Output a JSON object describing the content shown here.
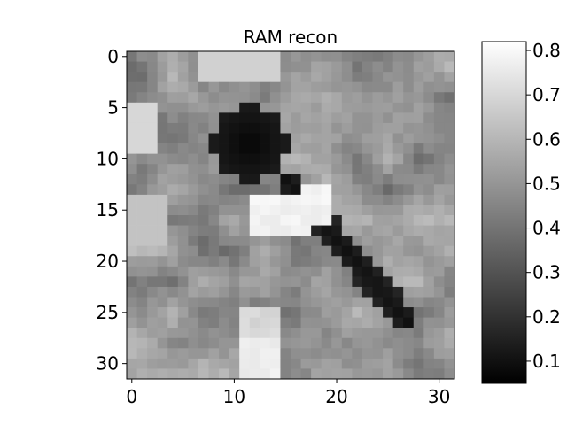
{
  "chart_data": {
    "type": "heatmap",
    "title": "RAM recon",
    "xlabel": "",
    "ylabel": "",
    "colormap": "gray",
    "grid": false,
    "x_ticks": [
      0,
      10,
      20,
      30
    ],
    "y_ticks": [
      0,
      5,
      10,
      15,
      20,
      25,
      30
    ],
    "xlim": [
      -0.5,
      31.5
    ],
    "ylim": [
      31.5,
      -0.5
    ],
    "colorbar": {
      "placement": "right",
      "vmin": 0.05,
      "vmax": 0.82,
      "ticks": [
        0.1,
        0.2,
        0.3,
        0.4,
        0.5,
        0.6,
        0.7,
        0.8
      ]
    },
    "grid_size": [
      32,
      32
    ],
    "description_note": "",
    "regions": {
      "background_level": 0.5,
      "dark_blob": {
        "center": [
          11.5,
          8.5
        ],
        "radius": [
          3.6,
          3.8
        ],
        "value": 0.07
      },
      "dark_diagonal": {
        "from": [
          15,
          12
        ],
        "to": [
          27,
          26
        ],
        "half_width": 1.3,
        "value": 0.1
      },
      "bright_bar": {
        "x_range": [
          11.5,
          19.5
        ],
        "y_range": [
          12.5,
          17.5
        ],
        "value": 0.8
      },
      "bright_lower": {
        "x_range": [
          10.5,
          14.5
        ],
        "y_range": [
          24.5,
          31.5
        ],
        "value": 0.79
      }
    }
  }
}
